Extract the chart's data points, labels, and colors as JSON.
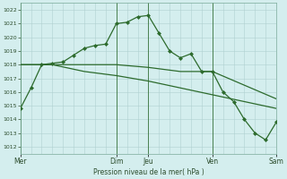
{
  "background_color": "#d4eeee",
  "grid_color": "#b0d0d0",
  "line_color": "#2d6b2d",
  "xlabel": "Pression niveau de la mer( hPa )",
  "ylim": [
    1011.5,
    1022.5
  ],
  "yticks": [
    1012,
    1013,
    1014,
    1015,
    1016,
    1017,
    1018,
    1019,
    1020,
    1021,
    1022
  ],
  "day_labels": [
    "Mer",
    "Dim",
    "Jeu",
    "Ven",
    "Sam"
  ],
  "day_positions": [
    0,
    9,
    12,
    18,
    24
  ],
  "vline_positions": [
    0,
    9,
    12,
    18,
    24
  ],
  "line1_x": [
    0,
    1,
    2,
    3,
    4,
    5,
    6,
    7,
    8,
    9,
    10,
    11,
    12,
    13,
    14,
    15,
    16,
    17,
    18,
    19,
    20,
    21,
    22,
    23,
    24
  ],
  "line1_y": [
    1014.8,
    1016.3,
    1018.0,
    1018.1,
    1018.2,
    1018.7,
    1019.2,
    1019.4,
    1019.5,
    1021.0,
    1021.1,
    1021.5,
    1021.6,
    1020.3,
    1019.0,
    1018.5,
    1018.8,
    1017.5,
    1017.5,
    1016.0,
    1015.3,
    1014.0,
    1013.0,
    1012.5,
    1013.8
  ],
  "line2_x": [
    0,
    3,
    6,
    9,
    12,
    15,
    18,
    21,
    24
  ],
  "line2_y": [
    1018.0,
    1018.0,
    1018.0,
    1018.0,
    1017.8,
    1017.5,
    1017.5,
    1016.5,
    1015.5
  ],
  "line3_x": [
    0,
    3,
    6,
    9,
    12,
    15,
    18,
    21,
    24
  ],
  "line3_y": [
    1018.0,
    1018.0,
    1017.5,
    1017.2,
    1016.8,
    1016.3,
    1015.8,
    1015.3,
    1014.8
  ]
}
